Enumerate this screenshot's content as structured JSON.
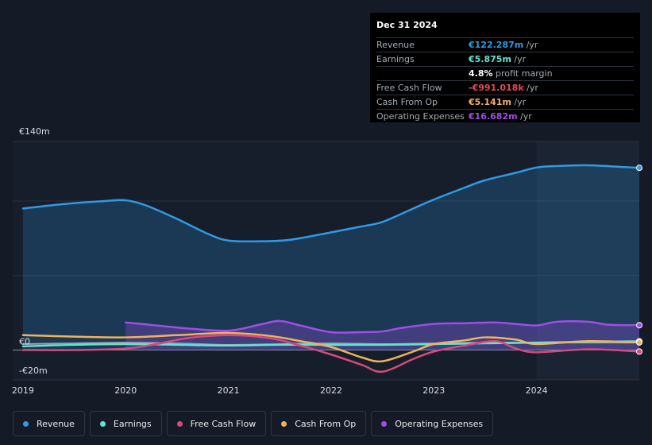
{
  "tooltip": {
    "date": "Dec 31 2024",
    "rows": [
      {
        "label": "Revenue",
        "value": "€122.287m",
        "suffix": " /yr",
        "color": "#2e9be6"
      },
      {
        "label": "Earnings",
        "value": "€5.875m",
        "suffix": " /yr",
        "color": "#61e3d3"
      },
      {
        "label": "",
        "value": "4.8%",
        "suffix": " profit margin",
        "color": "#ffffff"
      },
      {
        "label": "Free Cash Flow",
        "value": "-€991.018k",
        "suffix": " /yr",
        "color": "#e8455a"
      },
      {
        "label": "Cash From Op",
        "value": "€5.141m",
        "suffix": " /yr",
        "color": "#f2b25c"
      },
      {
        "label": "Operating Expenses",
        "value": "€16.682m",
        "suffix": " /yr",
        "color": "#a24de8"
      }
    ]
  },
  "legend": [
    {
      "label": "Revenue",
      "color": "#2e9be6"
    },
    {
      "label": "Earnings",
      "color": "#61e3d3"
    },
    {
      "label": "Free Cash Flow",
      "color": "#d9487c"
    },
    {
      "label": "Cash From Op",
      "color": "#f2b25c"
    },
    {
      "label": "Operating Expenses",
      "color": "#a24de8"
    }
  ],
  "chart_data": {
    "type": "area",
    "y_tick_labels": [
      {
        "value": 140,
        "label": "€140m"
      },
      {
        "value": 0,
        "label": "€0"
      },
      {
        "value": -20,
        "label": "-€20m"
      }
    ],
    "ylim": [
      -20,
      140
    ],
    "xlim": [
      2018.9,
      2025.0
    ],
    "x_ticks": [
      2019,
      2020,
      2021,
      2022,
      2023,
      2024
    ],
    "highlight_from": 2024.0,
    "series": [
      {
        "name": "Revenue",
        "color": "#2e9be6",
        "fill": true,
        "x": [
          2019.0,
          2019.4,
          2019.8,
          2020.0,
          2020.2,
          2020.5,
          2020.8,
          2021.0,
          2021.3,
          2021.6,
          2022.0,
          2022.3,
          2022.5,
          2022.8,
          2023.0,
          2023.3,
          2023.5,
          2023.8,
          2024.0,
          2024.2,
          2024.5,
          2024.8,
          2025.0
        ],
        "y": [
          95,
          98,
          100,
          100.5,
          97,
          88,
          78,
          73.5,
          73,
          74,
          79,
          83,
          86,
          95,
          101,
          109,
          114,
          119,
          122.5,
          123.5,
          124,
          123,
          122.3
        ]
      },
      {
        "name": "Operating Expenses",
        "color": "#a24de8",
        "fill": true,
        "x": [
          2020.0,
          2020.3,
          2020.6,
          2021.0,
          2021.3,
          2021.5,
          2021.7,
          2022.0,
          2022.3,
          2022.5,
          2022.7,
          2023.0,
          2023.3,
          2023.6,
          2023.8,
          2024.0,
          2024.2,
          2024.5,
          2024.7,
          2025.0
        ],
        "y": [
          18.5,
          16.5,
          14.5,
          13,
          17,
          19.5,
          16.5,
          12,
          12,
          12.5,
          15,
          17.5,
          18,
          18.5,
          17.5,
          16.5,
          19,
          19,
          17,
          16.7
        ]
      },
      {
        "name": "Earnings",
        "color": "#61e3d3",
        "fill": false,
        "x": [
          2019.0,
          2019.5,
          2020.0,
          2020.5,
          2021.0,
          2021.5,
          2022.0,
          2022.5,
          2023.0,
          2023.5,
          2024.0,
          2024.5,
          2025.0
        ],
        "y": [
          2.5,
          3.5,
          4,
          3.5,
          3,
          3.5,
          3.5,
          3.5,
          4,
          4.5,
          5,
          5.5,
          5.9
        ]
      },
      {
        "name": "Cash From Op",
        "color": "#f2b25c",
        "fill": false,
        "x": [
          2019.0,
          2019.5,
          2020.0,
          2020.5,
          2021.0,
          2021.4,
          2021.7,
          2022.0,
          2022.3,
          2022.5,
          2022.8,
          2023.0,
          2023.3,
          2023.5,
          2023.8,
          2024.0,
          2024.5,
          2025.0
        ],
        "y": [
          10,
          9,
          8.5,
          10,
          11.5,
          9.5,
          6,
          2,
          -5,
          -7.5,
          -1,
          4,
          6.5,
          8.5,
          7,
          4,
          6,
          5.1
        ]
      },
      {
        "name": "Free Cash Flow",
        "color": "#d9487c",
        "fill": false,
        "x": [
          2019.0,
          2019.5,
          2020.0,
          2020.3,
          2020.6,
          2021.0,
          2021.4,
          2021.7,
          2022.0,
          2022.3,
          2022.5,
          2022.8,
          2023.0,
          2023.3,
          2023.6,
          2023.8,
          2024.0,
          2024.5,
          2025.0
        ],
        "y": [
          0,
          0,
          1,
          4,
          8,
          10,
          8,
          3,
          -3,
          -10,
          -14.5,
          -6,
          -1,
          3,
          6,
          1,
          -1.5,
          0.5,
          -1
        ]
      },
      {
        "name": "Gray",
        "color": "#9aa3ad",
        "fill": false,
        "x": [
          2019.0,
          2019.5,
          2020.0,
          2020.5,
          2021.0,
          2021.5,
          2022.0,
          2022.5,
          2023.0,
          2023.5,
          2024.0,
          2024.5,
          2025.0
        ],
        "y": [
          4,
          4.5,
          5,
          4.5,
          3.5,
          4,
          4.5,
          4,
          4.5,
          5,
          5,
          5,
          5
        ]
      }
    ]
  }
}
